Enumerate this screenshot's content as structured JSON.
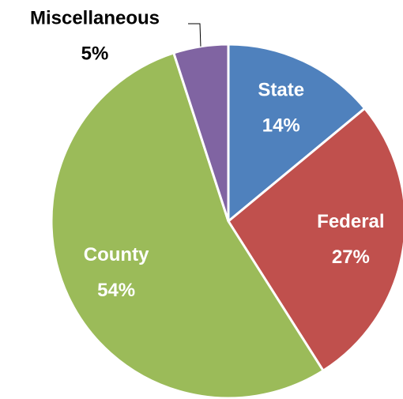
{
  "chart_data": {
    "type": "pie",
    "categories": [
      "State",
      "Federal",
      "County",
      "Miscellaneous"
    ],
    "values": [
      14,
      27,
      54,
      5
    ],
    "value_labels": [
      "14%",
      "27%",
      "54%",
      "5%"
    ],
    "colors": [
      "#4f81bd",
      "#c0504d",
      "#9bbb59",
      "#8064a2"
    ]
  }
}
